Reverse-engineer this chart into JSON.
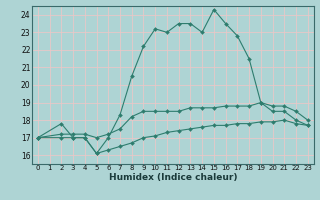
{
  "xlabel": "Humidex (Indice chaleur)",
  "xlim": [
    -0.5,
    23.5
  ],
  "ylim": [
    15.5,
    24.5
  ],
  "yticks": [
    16,
    17,
    18,
    19,
    20,
    21,
    22,
    23,
    24
  ],
  "xticks": [
    0,
    1,
    2,
    3,
    4,
    5,
    6,
    7,
    8,
    9,
    10,
    11,
    12,
    13,
    14,
    15,
    16,
    17,
    18,
    19,
    20,
    21,
    22,
    23
  ],
  "bg_color": "#aed4d4",
  "grid_color": "#e8c8c8",
  "line_color": "#2e7d6e",
  "lines": [
    {
      "x": [
        0,
        2,
        3,
        4,
        5,
        6,
        7,
        8,
        9,
        10,
        11,
        12,
        13,
        14,
        15,
        16,
        17,
        18,
        19,
        20,
        21,
        22,
        23
      ],
      "y": [
        17.0,
        17.8,
        17.0,
        17.0,
        16.1,
        17.0,
        18.3,
        20.5,
        22.2,
        23.2,
        23.0,
        23.5,
        23.5,
        23.0,
        24.3,
        23.5,
        22.8,
        21.5,
        19.0,
        18.5,
        18.5,
        18.0,
        17.7
      ]
    },
    {
      "x": [
        0,
        2,
        3,
        4,
        5,
        6,
        7,
        8,
        9,
        10,
        11,
        12,
        13,
        14,
        15,
        16,
        17,
        18,
        19,
        20,
        21,
        22,
        23
      ],
      "y": [
        17.0,
        17.2,
        17.2,
        17.2,
        17.0,
        17.2,
        17.5,
        18.2,
        18.5,
        18.5,
        18.5,
        18.5,
        18.7,
        18.7,
        18.7,
        18.8,
        18.8,
        18.8,
        19.0,
        18.8,
        18.8,
        18.5,
        18.0
      ]
    },
    {
      "x": [
        0,
        2,
        3,
        4,
        5,
        6,
        7,
        8,
        9,
        10,
        11,
        12,
        13,
        14,
        15,
        16,
        17,
        18,
        19,
        20,
        21,
        22,
        23
      ],
      "y": [
        17.0,
        17.0,
        17.0,
        17.0,
        16.1,
        16.3,
        16.5,
        16.7,
        17.0,
        17.1,
        17.3,
        17.4,
        17.5,
        17.6,
        17.7,
        17.7,
        17.8,
        17.8,
        17.9,
        17.9,
        18.0,
        17.8,
        17.7
      ]
    }
  ]
}
